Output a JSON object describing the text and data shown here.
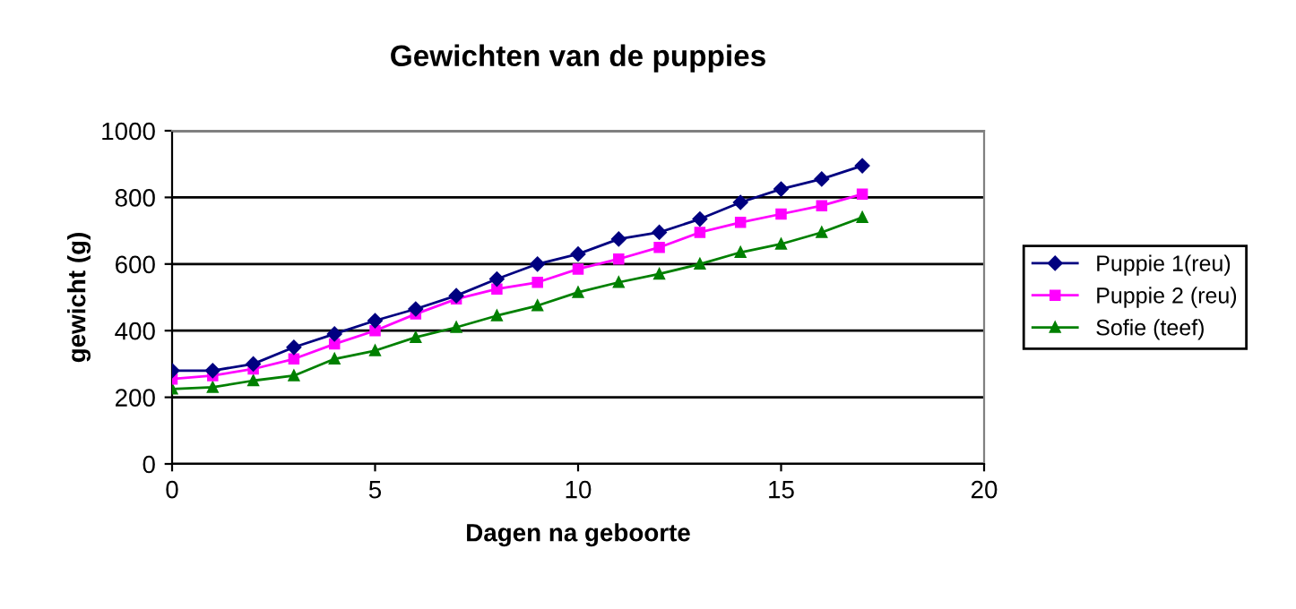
{
  "chart_data": {
    "type": "line",
    "title": "Gewichten van de puppies",
    "xlabel": "Dagen na geboorte",
    "ylabel": "gewicht (g)",
    "x": [
      0,
      1,
      2,
      3,
      4,
      5,
      6,
      7,
      8,
      9,
      10,
      11,
      12,
      13,
      14,
      15,
      16,
      17
    ],
    "series": [
      {
        "name": "Puppie 1(reu)",
        "color": "#000080",
        "marker": "diamond",
        "values": [
          280,
          280,
          300,
          350,
          390,
          430,
          465,
          505,
          555,
          600,
          630,
          675,
          695,
          735,
          785,
          825,
          855,
          895
        ]
      },
      {
        "name": "Puppie 2 (reu)",
        "color": "#ff00ff",
        "marker": "square",
        "values": [
          255,
          265,
          285,
          315,
          360,
          400,
          450,
          495,
          525,
          545,
          585,
          615,
          650,
          695,
          725,
          750,
          775,
          810
        ]
      },
      {
        "name": "Sofie (teef)",
        "color": "#008000",
        "marker": "triangle",
        "values": [
          225,
          230,
          250,
          265,
          315,
          340,
          380,
          410,
          445,
          475,
          515,
          545,
          570,
          600,
          635,
          660,
          695,
          740
        ]
      }
    ],
    "xlim": [
      0,
      20
    ],
    "xticks": [
      0,
      5,
      10,
      15,
      20
    ],
    "ylim": [
      0,
      1000
    ],
    "yticks": [
      0,
      200,
      400,
      600,
      800,
      1000
    ],
    "grid": "y",
    "legend": "right"
  }
}
